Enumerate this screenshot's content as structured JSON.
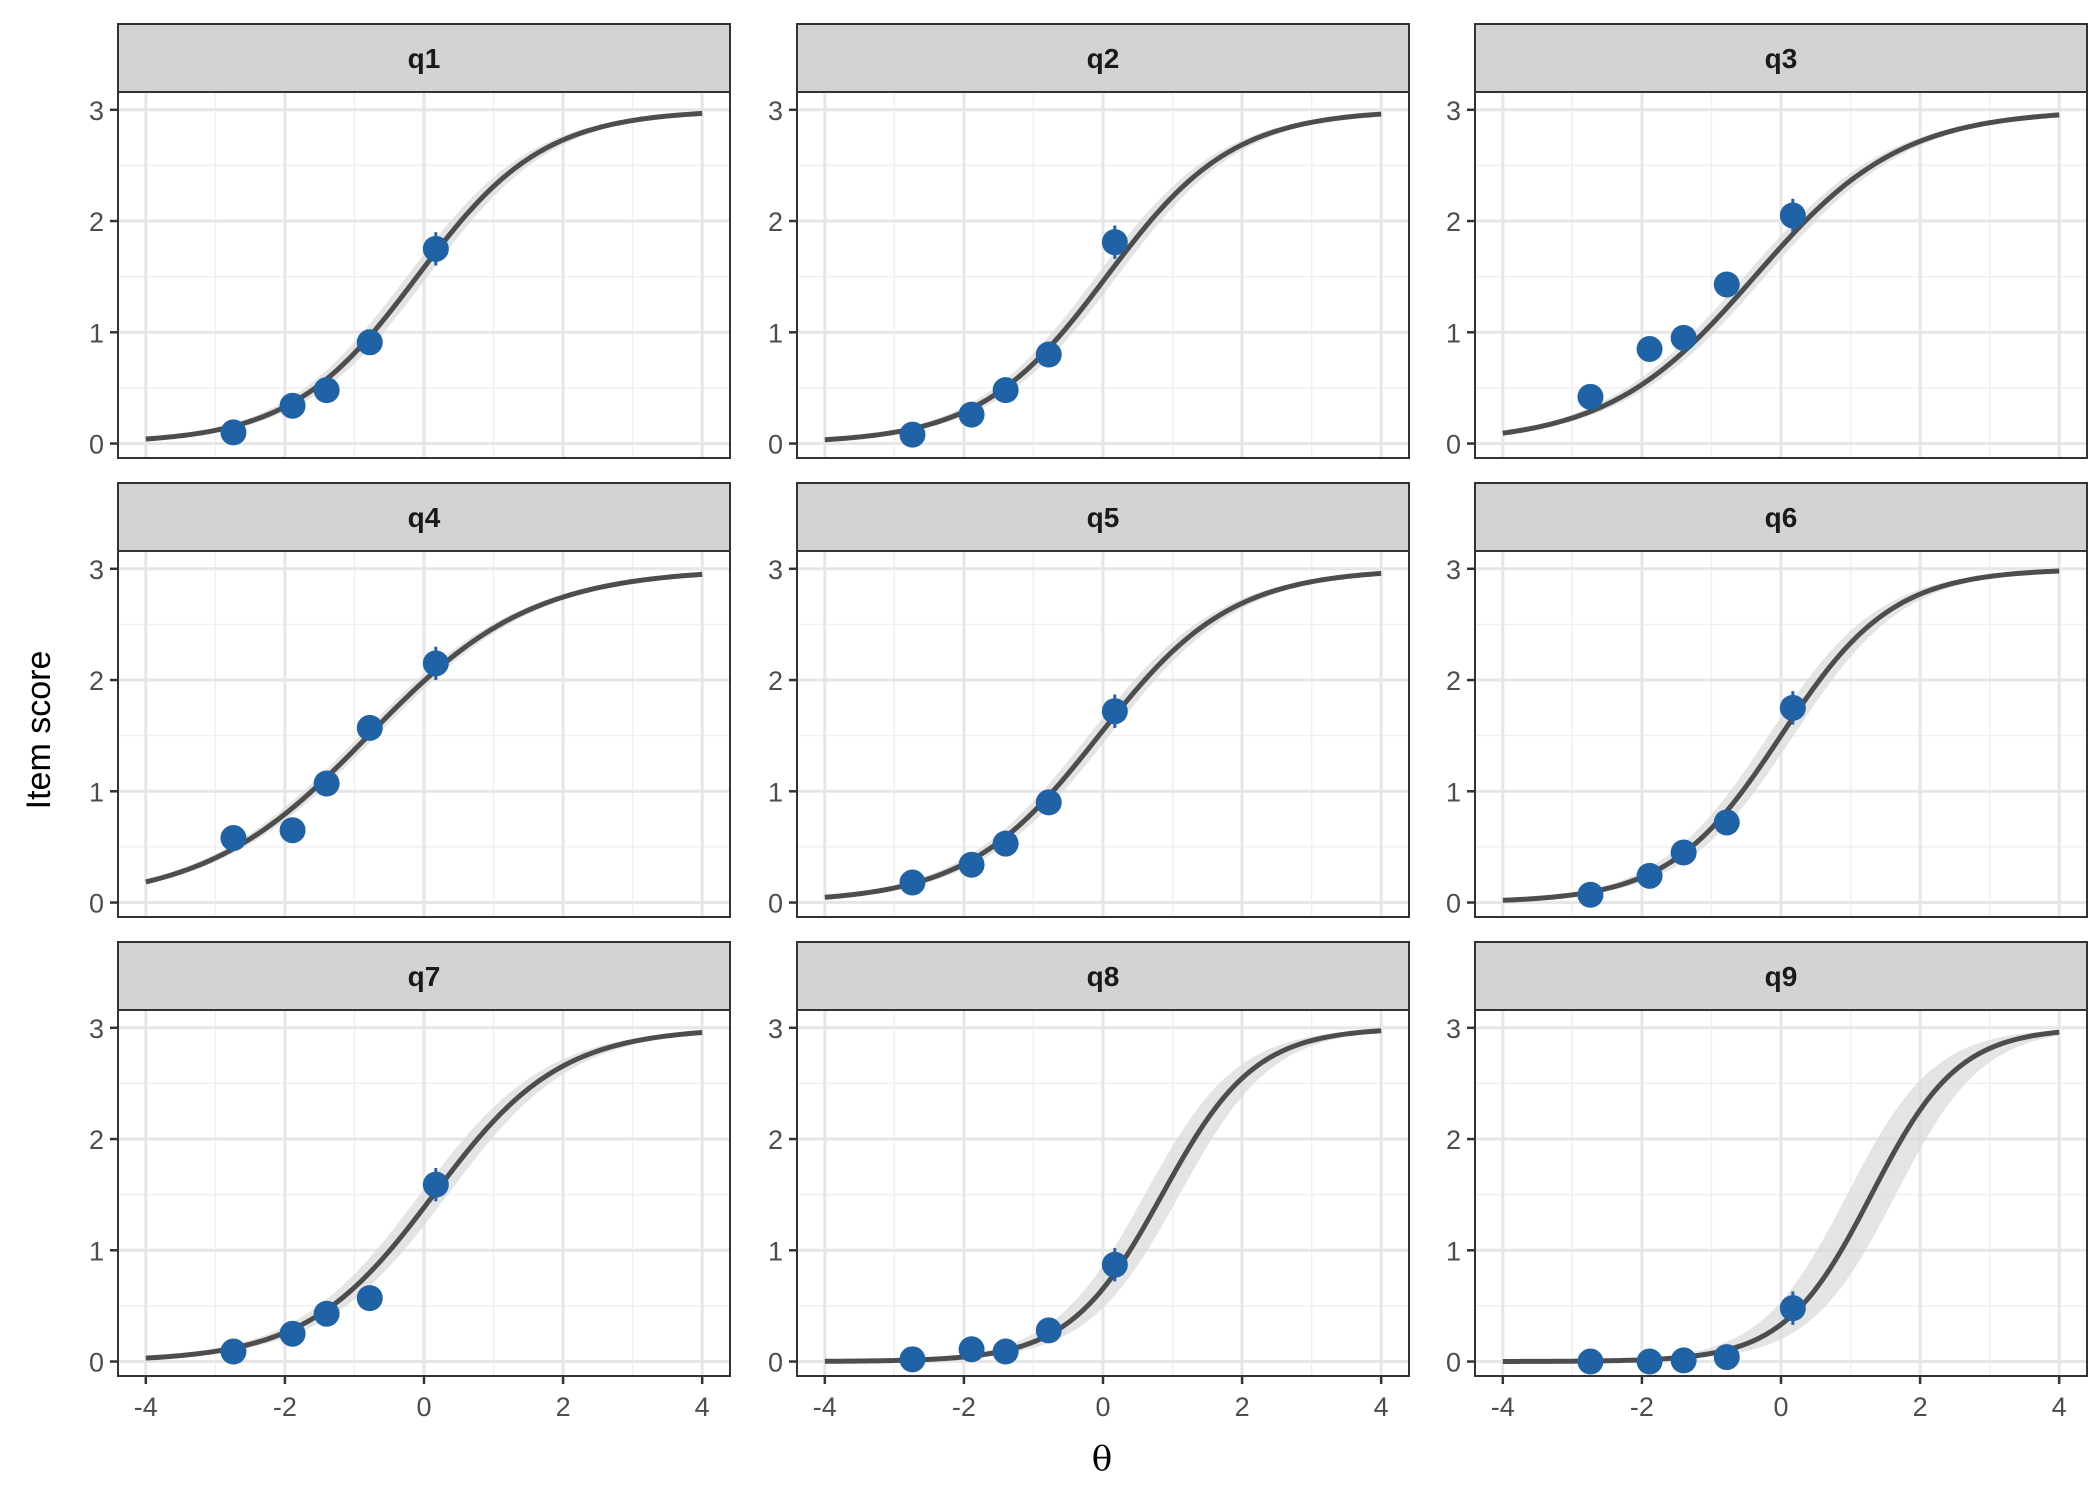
{
  "chart_data": {
    "type": "line",
    "layout": "facet grid 3x3",
    "xlabel": "θ",
    "ylabel": "Item score",
    "xlim": [
      -4.4,
      4.4
    ],
    "ylim": [
      -0.13,
      3.16
    ],
    "x_ticks": [
      "-4",
      "-2",
      "0",
      "2",
      "4"
    ],
    "x_tick_values": [
      -4,
      -2,
      0,
      2,
      4
    ],
    "y_ticks": [
      "0",
      "1",
      "2",
      "3"
    ],
    "y_tick_values": [
      0,
      1,
      2,
      3
    ],
    "grid": true,
    "colors": {
      "points": "#1f62a5",
      "curve": "#4d4d4d",
      "ribbon": "#d9d9d9",
      "strip": "#d3d3d3"
    },
    "point_x": [
      -2.74,
      -1.89,
      -1.4,
      -0.78,
      0.17
    ],
    "point_err": [
      0.04,
      0.08,
      0.08,
      0.1,
      0.15
    ],
    "curve_max": 3,
    "panels": [
      {
        "title": "q1",
        "a": 1.1,
        "b": -0.1,
        "band": 0.15,
        "y": [
          0.1,
          0.34,
          0.48,
          0.91,
          1.75
        ]
      },
      {
        "title": "q2",
        "a": 1.1,
        "b": 0.05,
        "band": 0.15,
        "y": [
          0.08,
          0.26,
          0.48,
          0.8,
          1.81
        ]
      },
      {
        "title": "q3",
        "a": 0.95,
        "b": -0.38,
        "band": 0.15,
        "y": [
          0.42,
          0.85,
          0.95,
          1.43,
          2.05
        ]
      },
      {
        "title": "q4",
        "a": 0.85,
        "b": -0.8,
        "band": 0.12,
        "y": [
          0.58,
          0.65,
          1.07,
          1.57,
          2.15
        ]
      },
      {
        "title": "q5",
        "a": 1.05,
        "b": -0.06,
        "band": 0.15,
        "y": [
          0.18,
          0.34,
          0.53,
          0.9,
          1.72
        ]
      },
      {
        "title": "q6",
        "a": 1.25,
        "b": 0.0,
        "band": 0.18,
        "y": [
          0.07,
          0.24,
          0.45,
          0.72,
          1.75
        ]
      },
      {
        "title": "q7",
        "a": 1.1,
        "b": 0.14,
        "band": 0.2,
        "y": [
          0.09,
          0.25,
          0.43,
          0.57,
          1.59
        ]
      },
      {
        "title": "q8",
        "a": 1.5,
        "b": 0.85,
        "band": 0.25,
        "y": [
          0.02,
          0.11,
          0.09,
          0.28,
          0.87
        ]
      },
      {
        "title": "q9",
        "a": 1.6,
        "b": 1.3,
        "band": 0.35,
        "y": [
          0.0,
          0.0,
          0.01,
          0.04,
          0.48
        ]
      }
    ]
  }
}
